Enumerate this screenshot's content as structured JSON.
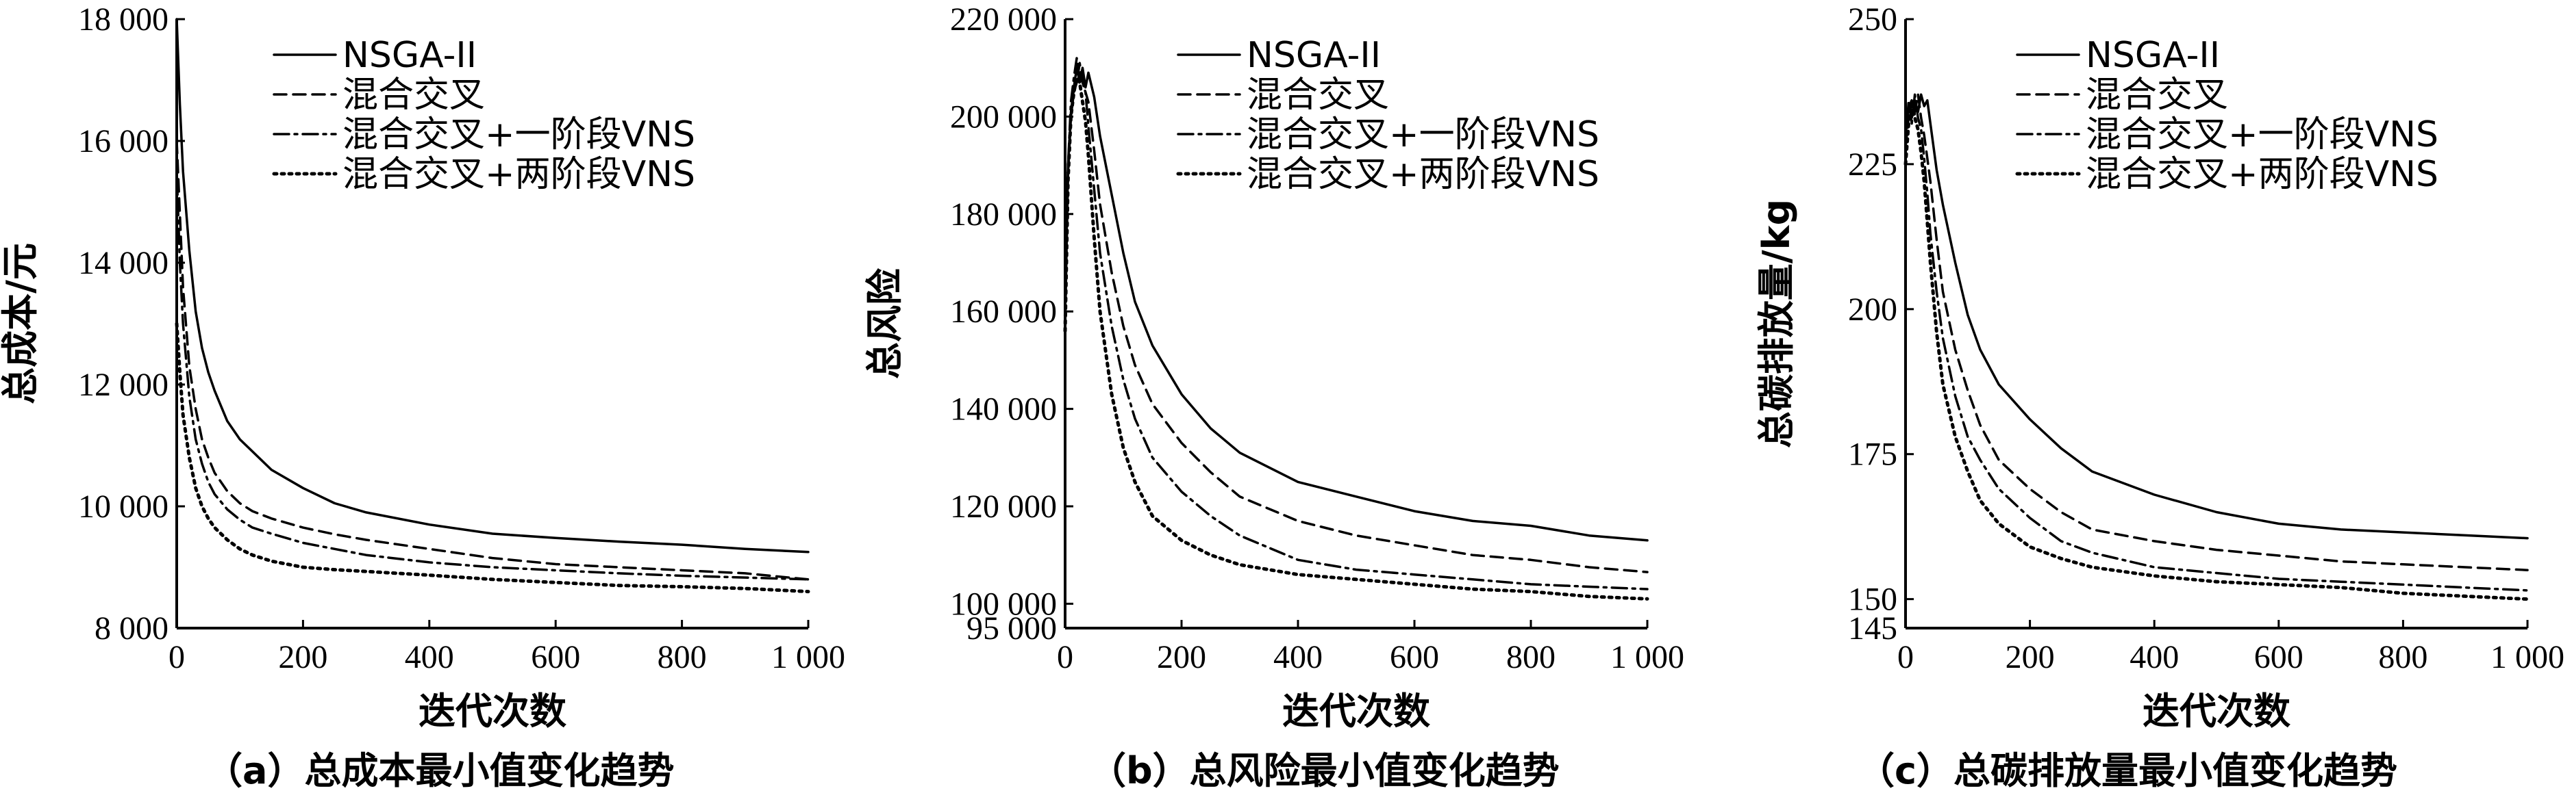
{
  "chart_data": [
    {
      "type": "line",
      "caption": "（a）总成本最小值变化趋势",
      "xlabel": "迭代次数",
      "ylabel": "总成本/元",
      "xlim": [
        0,
        1000
      ],
      "ylim": [
        8000,
        18000
      ],
      "xticks": [
        "0",
        "200",
        "400",
        "600",
        "800",
        "1 000"
      ],
      "yticks": [
        "8 000",
        "10 000",
        "12 000",
        "14 000",
        "16 000",
        "18 000"
      ],
      "ytick_values": [
        8000,
        10000,
        12000,
        14000,
        16000,
        18000
      ],
      "legend_position": "top-right",
      "x": [
        0,
        5,
        10,
        20,
        30,
        40,
        50,
        60,
        80,
        100,
        120,
        150,
        200,
        250,
        300,
        400,
        500,
        600,
        700,
        800,
        900,
        1000
      ],
      "series": [
        {
          "name": "NSGA-II",
          "style": "solid",
          "values": [
            18000,
            16600,
            15500,
            14200,
            13200,
            12600,
            12200,
            11900,
            11400,
            11100,
            10900,
            10600,
            10300,
            10050,
            9900,
            9700,
            9550,
            9480,
            9420,
            9370,
            9300,
            9250
          ]
        },
        {
          "name": "混合交叉",
          "style": "dashed",
          "values": [
            16000,
            14800,
            13600,
            12300,
            11600,
            11100,
            10800,
            10550,
            10250,
            10050,
            9920,
            9800,
            9650,
            9540,
            9450,
            9300,
            9150,
            9050,
            9000,
            8950,
            8900,
            8800
          ]
        },
        {
          "name": "混合交叉+一阶段VNS",
          "style": "dashdot",
          "values": [
            15500,
            14000,
            13000,
            11800,
            11100,
            10700,
            10400,
            10200,
            9950,
            9780,
            9650,
            9550,
            9400,
            9300,
            9200,
            9080,
            9000,
            8950,
            8900,
            8860,
            8830,
            8800
          ]
        },
        {
          "name": "混合交叉+两阶段VNS",
          "style": "dotted",
          "values": [
            13000,
            12200,
            11500,
            10800,
            10300,
            10000,
            9800,
            9650,
            9450,
            9300,
            9200,
            9100,
            9000,
            8960,
            8930,
            8870,
            8800,
            8750,
            8700,
            8680,
            8650,
            8600
          ]
        }
      ]
    },
    {
      "type": "line",
      "caption": "（b）总风险最小值变化趋势",
      "xlabel": "迭代次数",
      "ylabel": "总风险",
      "xlim": [
        0,
        1000
      ],
      "ylim": [
        95000,
        220000
      ],
      "xticks": [
        "0",
        "200",
        "400",
        "600",
        "800",
        "1 000"
      ],
      "yticks": [
        "95 000",
        "100 000",
        "120 000",
        "140 000",
        "160 000",
        "180 000",
        "200 000",
        "220 000"
      ],
      "ytick_values": [
        95000,
        100000,
        120000,
        140000,
        160000,
        180000,
        200000,
        220000
      ],
      "legend_position": "top-right",
      "x": [
        0,
        5,
        10,
        15,
        20,
        25,
        30,
        35,
        40,
        50,
        60,
        80,
        100,
        120,
        150,
        200,
        250,
        300,
        400,
        500,
        600,
        700,
        800,
        900,
        1000
      ],
      "series": [
        {
          "name": "NSGA-II",
          "style": "solid",
          "values": [
            160000,
            190000,
            200000,
            206000,
            210000,
            207000,
            210000,
            206000,
            209000,
            204000,
            196000,
            184000,
            172000,
            162000,
            153000,
            143000,
            136000,
            131000,
            125000,
            122000,
            119000,
            117000,
            116000,
            114000,
            113000
          ]
        },
        {
          "name": "混合交叉",
          "style": "dashed",
          "values": [
            158000,
            188000,
            200000,
            205000,
            207000,
            211000,
            207000,
            205000,
            203000,
            193000,
            182000,
            168000,
            157000,
            149000,
            141000,
            133000,
            127000,
            122000,
            117000,
            114000,
            112000,
            110000,
            109000,
            107500,
            106500
          ]
        },
        {
          "name": "混合交叉+一阶段VNS",
          "style": "dashdot",
          "values": [
            156000,
            190000,
            203000,
            208000,
            212000,
            208000,
            207000,
            205000,
            198000,
            185000,
            172000,
            157000,
            146000,
            138000,
            130000,
            123000,
            118000,
            114000,
            109000,
            107000,
            106000,
            105000,
            104000,
            103500,
            103000
          ]
        },
        {
          "name": "混合交叉+两阶段VNS",
          "style": "dotted",
          "values": [
            156000,
            187000,
            200000,
            205000,
            208000,
            207000,
            203000,
            199000,
            192000,
            175000,
            160000,
            143000,
            132000,
            125000,
            118000,
            113000,
            110000,
            108000,
            106000,
            105000,
            104000,
            103000,
            102500,
            101500,
            101000
          ]
        }
      ]
    },
    {
      "type": "line",
      "caption": "（c）总碳排放量最小值变化趋势",
      "xlabel": "迭代次数",
      "ylabel": "总碳排放量/kg",
      "xlim": [
        0,
        1000
      ],
      "ylim": [
        145,
        250
      ],
      "xticks": [
        "0",
        "200",
        "400",
        "600",
        "800",
        "1 000"
      ],
      "yticks": [
        "145",
        "150",
        "175",
        "200",
        "225",
        "250"
      ],
      "ytick_values": [
        145,
        150,
        175,
        200,
        225,
        250
      ],
      "legend_position": "top-right",
      "x": [
        0,
        5,
        10,
        15,
        20,
        25,
        30,
        35,
        40,
        50,
        60,
        80,
        100,
        120,
        150,
        200,
        250,
        300,
        400,
        500,
        600,
        700,
        800,
        900,
        1000
      ],
      "series": [
        {
          "name": "NSGA-II",
          "style": "solid",
          "values": [
            230,
            235,
            233,
            236,
            234,
            237,
            235,
            236,
            232,
            224,
            218,
            208,
            199,
            193,
            187,
            181,
            176,
            172,
            168,
            165,
            163,
            162,
            161.5,
            161,
            160.5
          ]
        },
        {
          "name": "混合交叉",
          "style": "dashed",
          "values": [
            228,
            233,
            236,
            234,
            237,
            233,
            230,
            226,
            222,
            212,
            203,
            193,
            186,
            180,
            174,
            169,
            165,
            162,
            160,
            158.5,
            157.5,
            156.5,
            156,
            155.5,
            155
          ]
        },
        {
          "name": "混合交叉+一阶段VNS",
          "style": "dashdot",
          "values": [
            228,
            236,
            232,
            237,
            233,
            231,
            226,
            220,
            213,
            203,
            195,
            185,
            178,
            174,
            169,
            164,
            160,
            158,
            155.5,
            154.5,
            153.5,
            153,
            152.5,
            152,
            151.5
          ]
        },
        {
          "name": "混合交叉+两阶段VNS",
          "style": "dotted",
          "values": [
            225,
            232,
            236,
            233,
            231,
            227,
            222,
            215,
            208,
            196,
            187,
            178,
            172,
            167,
            163,
            159,
            157,
            155.5,
            154,
            153,
            152.5,
            152,
            151,
            150.5,
            150
          ]
        }
      ]
    }
  ]
}
